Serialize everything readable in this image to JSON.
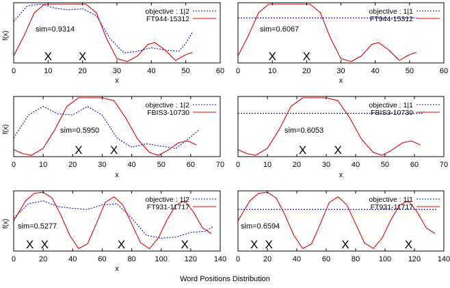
{
  "caption": "Word Positions Distribution",
  "colors": {
    "objective": "#0000cc",
    "fit": "#dd0000",
    "axis": "#000000"
  },
  "chart_data": [
    {
      "type": "line",
      "xlabel": "x",
      "ylabel": "f(x)",
      "xlim": [
        0,
        60
      ],
      "ylim": [
        0,
        1
      ],
      "xticks": [
        0,
        10,
        20,
        30,
        40,
        50,
        60
      ],
      "legend_position": "top-right",
      "sim_label": "sim=0.9314",
      "markers": {
        "symbol": "X",
        "x": [
          10,
          20
        ]
      },
      "series": [
        {
          "name": "objective : 1|2",
          "style": "dotted",
          "color": "#0000cc",
          "x": [
            0,
            4,
            8,
            12,
            16,
            20,
            24,
            28,
            32,
            36,
            40,
            44,
            48,
            50,
            52
          ],
          "y": [
            0.7,
            0.97,
            1.0,
            0.93,
            0.9,
            0.92,
            0.8,
            0.4,
            0.15,
            0.18,
            0.24,
            0.2,
            0.18,
            0.32,
            0.52
          ]
        },
        {
          "name": "FT944-15312",
          "style": "solid",
          "color": "#dd0000",
          "x": [
            0,
            3,
            6,
            9,
            12,
            15,
            18,
            21,
            24,
            27,
            30,
            33,
            36,
            39,
            41,
            44,
            47,
            50,
            52
          ],
          "y": [
            0.1,
            0.45,
            0.85,
            1.0,
            1.0,
            1.0,
            1.0,
            1.0,
            0.85,
            0.4,
            0.05,
            0.0,
            0.1,
            0.3,
            0.33,
            0.2,
            0.02,
            0.12,
            0.16
          ]
        }
      ]
    },
    {
      "type": "line",
      "xlabel": "x",
      "ylabel": "",
      "xlim": [
        0,
        60
      ],
      "ylim": [
        0,
        1
      ],
      "xticks": [
        0,
        10,
        20,
        30,
        40,
        50,
        60
      ],
      "legend_position": "top-right",
      "sim_label": "sim=0.6067",
      "markers": {
        "symbol": "X",
        "x": [
          10,
          20
        ]
      },
      "series": [
        {
          "name": "objective : 1|1",
          "style": "dotted",
          "color": "#0000cc",
          "x": [
            0,
            52
          ],
          "y": [
            0.76,
            0.76
          ]
        },
        {
          "name": "FT944-15312",
          "style": "solid",
          "color": "#dd0000",
          "x": [
            0,
            3,
            6,
            9,
            12,
            15,
            18,
            21,
            24,
            27,
            30,
            33,
            36,
            39,
            41,
            44,
            47,
            50,
            52
          ],
          "y": [
            0.1,
            0.45,
            0.85,
            1.0,
            1.0,
            1.0,
            1.0,
            1.0,
            0.85,
            0.4,
            0.05,
            0.0,
            0.1,
            0.3,
            0.33,
            0.2,
            0.02,
            0.12,
            0.16
          ]
        }
      ]
    },
    {
      "type": "line",
      "xlabel": "x",
      "ylabel": "f(x)",
      "xlim": [
        0,
        70
      ],
      "ylim": [
        0,
        1
      ],
      "xticks": [
        0,
        10,
        20,
        30,
        40,
        50,
        60,
        70
      ],
      "legend_position": "top-right",
      "sim_label": "sim=0.5950",
      "markers": {
        "symbol": "X",
        "x": [
          22,
          34
        ]
      },
      "series": [
        {
          "name": "objective : 1|2",
          "style": "dotted",
          "color": "#0000cc",
          "x": [
            0,
            5,
            10,
            15,
            20,
            25,
            30,
            35,
            40,
            45,
            50,
            55,
            60,
            63
          ],
          "y": [
            0.3,
            0.7,
            0.85,
            0.72,
            0.7,
            0.85,
            0.7,
            0.3,
            0.14,
            0.2,
            0.16,
            0.12,
            0.32,
            0.45
          ]
        },
        {
          "name": "FBIS3-10730",
          "style": "solid",
          "color": "#dd0000",
          "x": [
            0,
            3,
            6,
            10,
            14,
            18,
            22,
            26,
            30,
            34,
            38,
            42,
            46,
            49,
            52,
            56,
            59,
            62
          ],
          "y": [
            0.1,
            0.03,
            0.0,
            0.12,
            0.45,
            0.85,
            1.0,
            1.0,
            1.0,
            0.95,
            0.65,
            0.28,
            0.05,
            0.0,
            0.08,
            0.22,
            0.25,
            0.18
          ]
        }
      ]
    },
    {
      "type": "line",
      "xlabel": "x",
      "ylabel": "",
      "xlim": [
        0,
        70
      ],
      "ylim": [
        0,
        1
      ],
      "xticks": [
        0,
        10,
        20,
        30,
        40,
        50,
        60,
        70
      ],
      "legend_position": "top-right",
      "sim_label": "sim=0.6053",
      "markers": {
        "symbol": "X",
        "x": [
          22,
          34
        ]
      },
      "series": [
        {
          "name": "objective : 1|1",
          "style": "dotted",
          "color": "#0000cc",
          "x": [
            0,
            63
          ],
          "y": [
            0.73,
            0.73
          ]
        },
        {
          "name": "FBIS3-10730",
          "style": "solid",
          "color": "#dd0000",
          "x": [
            0,
            3,
            6,
            10,
            14,
            18,
            22,
            26,
            30,
            34,
            38,
            42,
            46,
            49,
            52,
            56,
            59,
            62
          ],
          "y": [
            0.1,
            0.03,
            0.0,
            0.12,
            0.45,
            0.85,
            1.0,
            1.0,
            1.0,
            0.95,
            0.65,
            0.28,
            0.05,
            0.0,
            0.08,
            0.22,
            0.25,
            0.18
          ]
        }
      ]
    },
    {
      "type": "line",
      "xlabel": "x",
      "ylabel": "f(x)",
      "xlim": [
        0,
        140
      ],
      "ylim": [
        0,
        1
      ],
      "xticks": [
        0,
        20,
        40,
        60,
        80,
        100,
        120,
        140
      ],
      "legend_position": "top-right",
      "sim_label": "sim=0.5277",
      "markers": {
        "symbol": "X",
        "x": [
          11,
          21,
          73,
          116
        ]
      },
      "series": [
        {
          "name": "objective : 1|2",
          "style": "dotted",
          "color": "#0000cc",
          "x": [
            0,
            10,
            20,
            30,
            40,
            50,
            60,
            70,
            80,
            90,
            100,
            110,
            120,
            130,
            135
          ],
          "y": [
            0.55,
            0.8,
            0.85,
            0.75,
            0.72,
            0.7,
            0.78,
            0.8,
            0.55,
            0.25,
            0.2,
            0.22,
            0.3,
            0.32,
            0.4
          ]
        },
        {
          "name": "FT931-11717",
          "style": "solid",
          "color": "#dd0000",
          "x": [
            0,
            8,
            14,
            20,
            26,
            32,
            38,
            44,
            50,
            56,
            62,
            68,
            74,
            80,
            86,
            92,
            98,
            104,
            110,
            116,
            122,
            128,
            134
          ],
          "y": [
            0.5,
            0.85,
            0.98,
            1.0,
            0.9,
            0.6,
            0.25,
            0.02,
            0.1,
            0.45,
            0.82,
            0.92,
            0.78,
            0.45,
            0.12,
            0.02,
            0.2,
            0.52,
            0.78,
            0.85,
            0.65,
            0.38,
            0.28
          ]
        }
      ]
    },
    {
      "type": "line",
      "xlabel": "",
      "ylabel": "",
      "xlim": [
        0,
        140
      ],
      "ylim": [
        0,
        1
      ],
      "xticks": [
        0,
        20,
        40,
        60,
        80,
        100,
        120,
        140
      ],
      "legend_position": "top-right",
      "sim_label": "sim=0.6594",
      "markers": {
        "symbol": "X",
        "x": [
          11,
          21,
          73,
          116
        ]
      },
      "series": [
        {
          "name": "objective : 1|1",
          "style": "dotted",
          "color": "#0000cc",
          "x": [
            0,
            135
          ],
          "y": [
            0.7,
            0.7
          ]
        },
        {
          "name": "FT931-11717",
          "style": "solid",
          "color": "#dd0000",
          "x": [
            0,
            8,
            14,
            20,
            26,
            32,
            38,
            44,
            50,
            56,
            62,
            68,
            74,
            80,
            86,
            92,
            98,
            104,
            110,
            116,
            122,
            128,
            134
          ],
          "y": [
            0.5,
            0.85,
            0.98,
            1.0,
            0.9,
            0.6,
            0.25,
            0.02,
            0.1,
            0.45,
            0.82,
            0.92,
            0.78,
            0.45,
            0.12,
            0.02,
            0.2,
            0.52,
            0.78,
            0.85,
            0.65,
            0.38,
            0.28
          ]
        }
      ]
    }
  ]
}
